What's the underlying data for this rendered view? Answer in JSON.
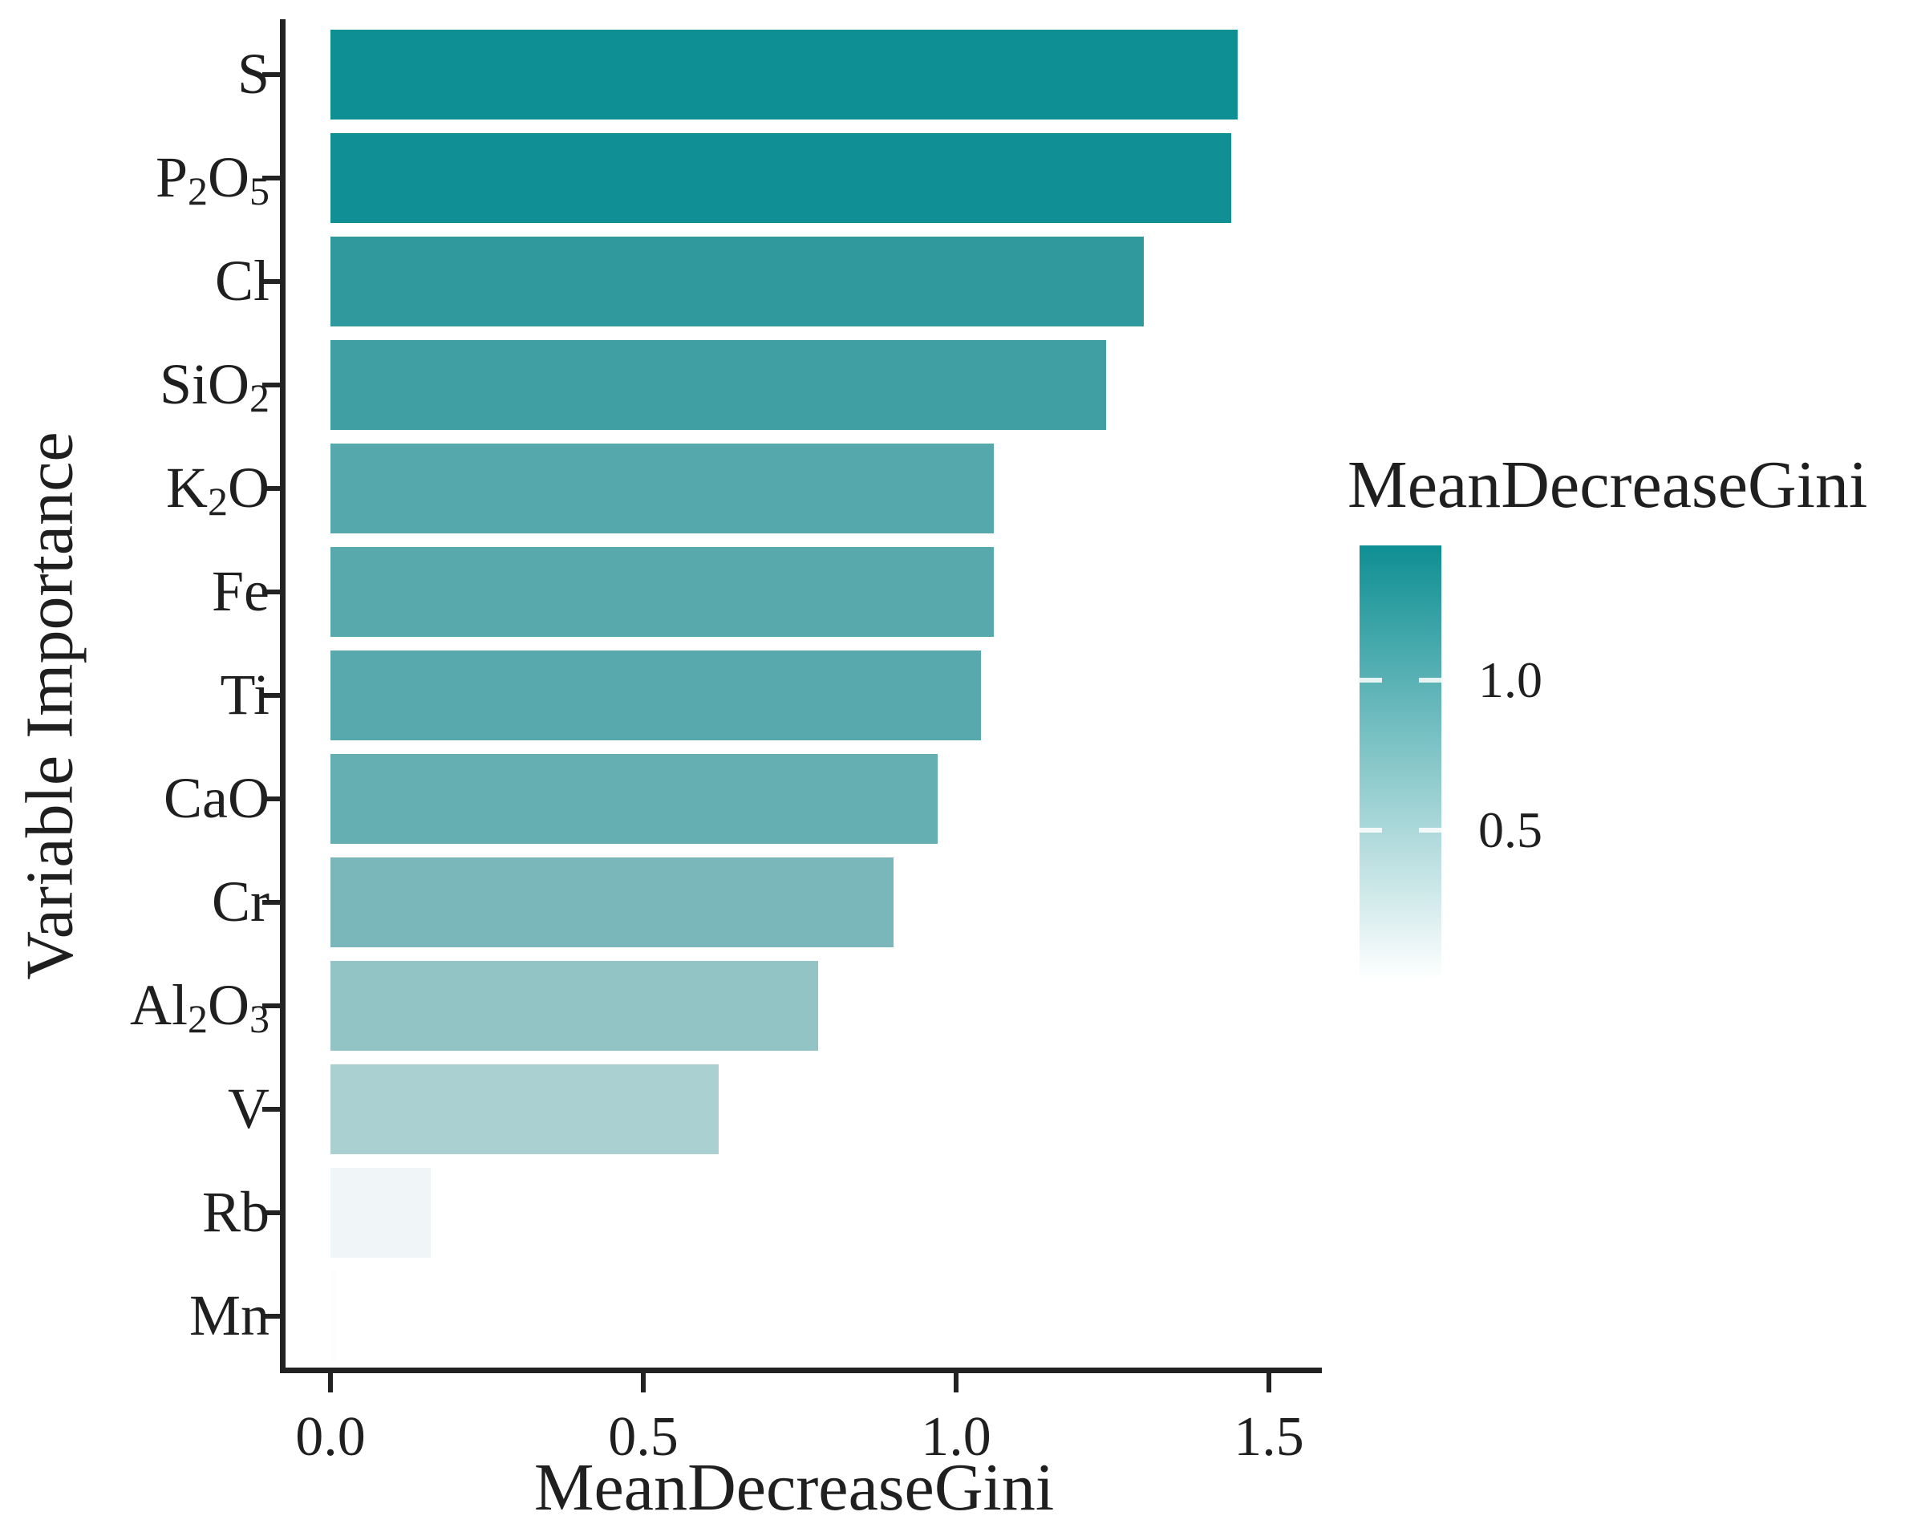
{
  "chart_data": {
    "type": "bar",
    "orientation": "horizontal",
    "xlabel": "MeanDecreaseGini",
    "ylabel": "Variable Importance",
    "xlim": [
      0,
      1.5
    ],
    "x_ticks": [
      0.0,
      0.5,
      1.0,
      1.5
    ],
    "x_tick_labels": [
      "0.0",
      "0.5",
      "1.0",
      "1.5"
    ],
    "grid": false,
    "background": "#ffffff",
    "axis_color": "#222222",
    "categories": [
      {
        "name": "S",
        "parts": [
          {
            "t": "S"
          }
        ],
        "value": 1.45,
        "color": "#0e8f93"
      },
      {
        "name": "P2O5",
        "parts": [
          {
            "t": "P"
          },
          {
            "t": "2",
            "sub": true
          },
          {
            "t": "O"
          },
          {
            "t": "5",
            "sub": true
          }
        ],
        "value": 1.44,
        "color": "#108f94"
      },
      {
        "name": "Cl",
        "parts": [
          {
            "t": "Cl"
          }
        ],
        "value": 1.3,
        "color": "#2f999e"
      },
      {
        "name": "SiO2",
        "parts": [
          {
            "t": "SiO"
          },
          {
            "t": "2",
            "sub": true
          }
        ],
        "value": 1.24,
        "color": "#3f9fa3"
      },
      {
        "name": "K2O",
        "parts": [
          {
            "t": "K"
          },
          {
            "t": "2",
            "sub": true
          },
          {
            "t": "O"
          }
        ],
        "value": 1.06,
        "color": "#55a8ac"
      },
      {
        "name": "Fe",
        "parts": [
          {
            "t": "Fe"
          }
        ],
        "value": 1.06,
        "color": "#57a9ac"
      },
      {
        "name": "Ti",
        "parts": [
          {
            "t": "Ti"
          }
        ],
        "value": 1.04,
        "color": "#58a9ad"
      },
      {
        "name": "CaO",
        "parts": [
          {
            "t": "CaO"
          }
        ],
        "value": 0.97,
        "color": "#65aeb1"
      },
      {
        "name": "Cr",
        "parts": [
          {
            "t": "Cr"
          }
        ],
        "value": 0.9,
        "color": "#79b7ba"
      },
      {
        "name": "Al2O3",
        "parts": [
          {
            "t": "Al"
          },
          {
            "t": "2",
            "sub": true
          },
          {
            "t": "O"
          },
          {
            "t": "3",
            "sub": true
          }
        ],
        "value": 0.78,
        "color": "#92c4c5"
      },
      {
        "name": "V",
        "parts": [
          {
            "t": "V"
          }
        ],
        "value": 0.62,
        "color": "#abd0d1"
      },
      {
        "name": "Rb",
        "parts": [
          {
            "t": "Rb"
          }
        ],
        "value": 0.16,
        "color": "#f0f6f7"
      },
      {
        "name": "Mn",
        "parts": [
          {
            "t": "Mn"
          }
        ],
        "value": 0.01,
        "color": "#fcfefe"
      }
    ],
    "legend": {
      "title": "MeanDecreaseGini",
      "position": "right",
      "max": 1.45,
      "min": 0,
      "high_color": "#0e8f93",
      "low_color": "#ffffff",
      "ticks": [
        {
          "value": 1.0,
          "label": "1.0"
        },
        {
          "value": 0.5,
          "label": "0.5"
        }
      ]
    }
  }
}
